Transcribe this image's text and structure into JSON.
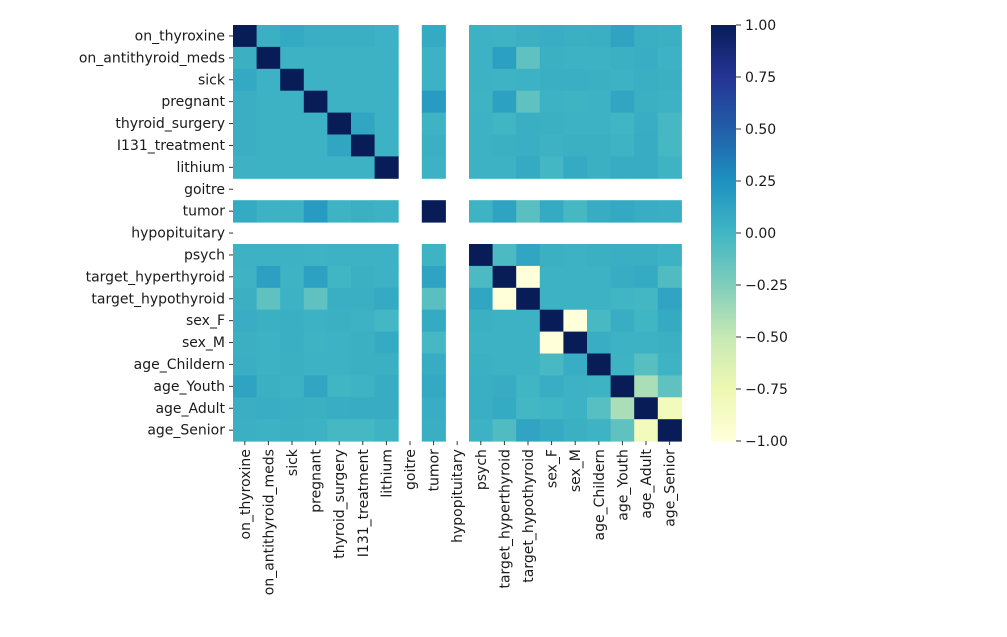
{
  "chart_data": {
    "type": "heatmap",
    "title": "",
    "xlabel": "",
    "ylabel": "",
    "variables": [
      "on_thyroxine",
      "on_antithyroid_meds",
      "sick",
      "pregnant",
      "thyroid_surgery",
      "I131_treatment",
      "lithium",
      "goitre",
      "tumor",
      "hypopituitary",
      "psych",
      "target_hyperthyroid",
      "target_hypothyroid",
      "sex_F",
      "sex_M",
      "age_Childern",
      "age_Youth",
      "age_Adult",
      "age_Senior"
    ],
    "matrix": [
      [
        1.0,
        0.04,
        0.09,
        0.05,
        0.05,
        0.05,
        0.03,
        null,
        0.08,
        null,
        0.03,
        0.02,
        0.04,
        0.06,
        0.04,
        0.05,
        0.13,
        0.05,
        0.04
      ],
      [
        0.04,
        1.0,
        0.03,
        0.03,
        0.03,
        0.03,
        0.03,
        null,
        0.03,
        null,
        0.03,
        0.15,
        -0.12,
        0.04,
        0.03,
        0.03,
        0.04,
        0.06,
        0.03
      ],
      [
        0.09,
        0.03,
        1.0,
        0.03,
        0.03,
        0.03,
        0.03,
        null,
        0.03,
        null,
        0.03,
        0.02,
        0.03,
        0.05,
        0.05,
        0.04,
        0.03,
        0.05,
        0.04
      ],
      [
        0.05,
        0.03,
        0.03,
        1.0,
        0.03,
        0.03,
        0.03,
        null,
        0.18,
        null,
        0.02,
        0.14,
        -0.12,
        0.03,
        0.02,
        0.03,
        0.11,
        0.04,
        0.03
      ],
      [
        0.05,
        0.03,
        0.03,
        0.03,
        1.0,
        0.11,
        0.03,
        null,
        0.02,
        null,
        0.03,
        0.01,
        0.05,
        0.04,
        0.03,
        0.03,
        0.01,
        0.06,
        -0.02
      ],
      [
        0.05,
        0.03,
        0.03,
        0.03,
        0.11,
        1.0,
        0.03,
        null,
        0.04,
        null,
        0.03,
        0.04,
        0.05,
        0.03,
        0.04,
        0.04,
        0.02,
        0.07,
        -0.02
      ],
      [
        0.03,
        0.03,
        0.03,
        0.03,
        0.03,
        0.03,
        1.0,
        null,
        0.03,
        null,
        0.03,
        0.03,
        0.08,
        -0.01,
        0.08,
        0.04,
        0.07,
        0.07,
        0.02
      ],
      [
        null,
        null,
        null,
        null,
        null,
        null,
        null,
        null,
        null,
        null,
        null,
        null,
        null,
        null,
        null,
        null,
        null,
        null,
        null
      ],
      [
        0.08,
        0.03,
        0.03,
        0.18,
        0.02,
        0.04,
        0.03,
        null,
        1.0,
        null,
        0.02,
        0.13,
        -0.1,
        0.08,
        -0.02,
        0.07,
        0.09,
        0.06,
        0.05
      ],
      [
        null,
        null,
        null,
        null,
        null,
        null,
        null,
        null,
        null,
        null,
        null,
        null,
        null,
        null,
        null,
        null,
        null,
        null,
        null
      ],
      [
        0.03,
        0.03,
        0.03,
        0.02,
        0.03,
        0.03,
        0.03,
        null,
        0.02,
        null,
        1.0,
        -0.04,
        0.11,
        0.04,
        0.03,
        0.04,
        0.05,
        0.05,
        0.03
      ],
      [
        0.02,
        0.15,
        0.02,
        0.14,
        0.01,
        0.04,
        0.03,
        null,
        0.13,
        null,
        -0.04,
        1.0,
        -1.0,
        0.03,
        0.03,
        0.03,
        0.07,
        0.08,
        -0.06
      ],
      [
        0.04,
        -0.12,
        0.03,
        -0.12,
        0.05,
        0.05,
        0.08,
        null,
        -0.1,
        null,
        0.11,
        -1.0,
        1.0,
        0.03,
        0.03,
        0.03,
        0.01,
        -0.01,
        0.12
      ],
      [
        0.06,
        0.04,
        0.05,
        0.03,
        0.04,
        0.03,
        -0.01,
        null,
        0.08,
        null,
        0.04,
        0.03,
        0.03,
        1.0,
        -1.0,
        -0.03,
        0.06,
        0.01,
        0.08
      ],
      [
        0.04,
        0.03,
        0.05,
        0.02,
        0.03,
        0.04,
        0.08,
        null,
        -0.02,
        null,
        0.03,
        0.03,
        0.03,
        -1.0,
        1.0,
        0.06,
        0.03,
        0.03,
        0.04
      ],
      [
        0.05,
        0.03,
        0.04,
        0.03,
        0.03,
        0.04,
        0.04,
        null,
        0.07,
        null,
        0.04,
        0.03,
        0.03,
        -0.03,
        0.06,
        1.0,
        0.02,
        -0.09,
        0.02
      ],
      [
        0.13,
        0.04,
        0.03,
        0.11,
        0.01,
        0.02,
        0.07,
        null,
        0.09,
        null,
        0.05,
        0.07,
        0.01,
        0.06,
        0.03,
        0.02,
        1.0,
        -0.4,
        -0.12
      ],
      [
        0.05,
        0.06,
        0.05,
        0.04,
        0.06,
        0.07,
        0.07,
        null,
        0.06,
        null,
        0.05,
        0.08,
        -0.01,
        0.01,
        0.03,
        -0.09,
        -0.4,
        1.0,
        -0.82
      ],
      [
        0.04,
        0.03,
        0.04,
        0.03,
        -0.02,
        -0.02,
        0.02,
        null,
        0.05,
        null,
        0.03,
        -0.06,
        0.12,
        0.08,
        0.04,
        0.02,
        -0.12,
        -0.82,
        1.0
      ]
    ],
    "colorbar": {
      "colormap": "YlGnBu",
      "vmin": -1.0,
      "vmax": 1.0,
      "ticks": [
        "1.00",
        "0.75",
        "0.50",
        "0.25",
        "0.00",
        "−0.25",
        "−0.50",
        "−0.75",
        "−1.00"
      ],
      "tick_values": [
        1.0,
        0.75,
        0.5,
        0.25,
        0.0,
        -0.25,
        -0.5,
        -0.75,
        -1.0
      ]
    }
  }
}
